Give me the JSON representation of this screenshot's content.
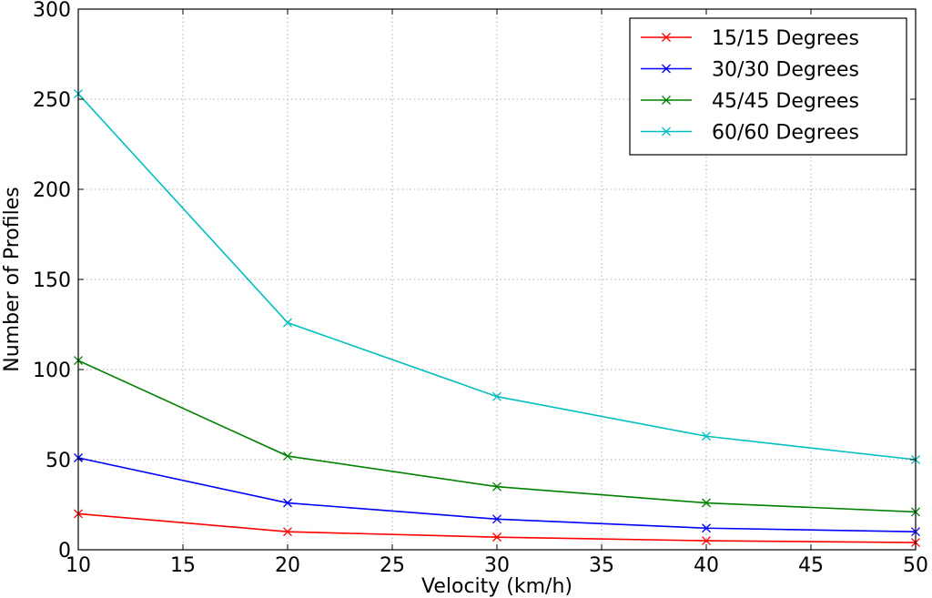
{
  "chart_data": {
    "type": "line",
    "title": "",
    "xlabel": "Velocity (km/h)",
    "ylabel": "Number of Profiles",
    "xlim": [
      10,
      50
    ],
    "ylim": [
      0,
      300
    ],
    "xticks": [
      10,
      15,
      20,
      25,
      30,
      35,
      40,
      45,
      50
    ],
    "yticks": [
      0,
      50,
      100,
      150,
      200,
      250,
      300
    ],
    "grid": true,
    "legend_position": "top-right",
    "marker": "x",
    "x": [
      10,
      20,
      30,
      40,
      50
    ],
    "series": [
      {
        "name": "15/15 Degrees",
        "color": "#ff0000",
        "values": [
          20,
          10,
          7,
          5,
          4
        ]
      },
      {
        "name": "30/30 Degrees",
        "color": "#0000ff",
        "values": [
          51,
          26,
          17,
          12,
          10
        ]
      },
      {
        "name": "45/45 Degrees",
        "color": "#008000",
        "values": [
          105,
          52,
          35,
          26,
          21
        ]
      },
      {
        "name": "60/60 Degrees",
        "color": "#00bfbf",
        "values": [
          253,
          126,
          85,
          63,
          50
        ]
      }
    ]
  }
}
